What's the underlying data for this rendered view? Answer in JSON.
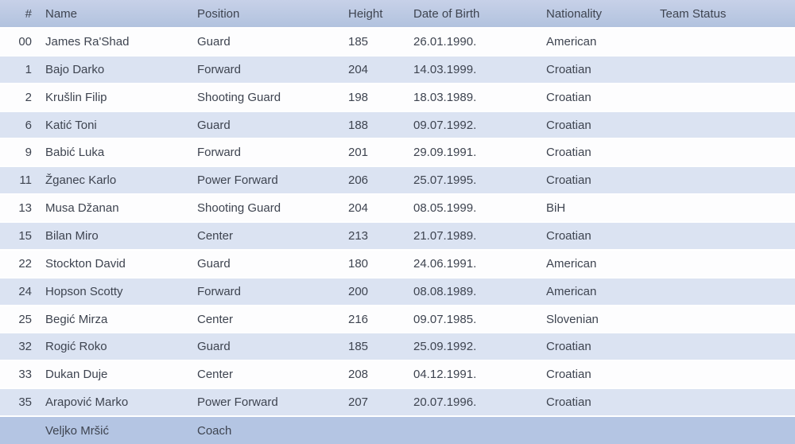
{
  "table": {
    "columns": [
      {
        "key": "num",
        "label": "#"
      },
      {
        "key": "name",
        "label": "Name"
      },
      {
        "key": "position",
        "label": "Position"
      },
      {
        "key": "height",
        "label": "Height"
      },
      {
        "key": "dob",
        "label": "Date of Birth"
      },
      {
        "key": "nationality",
        "label": "Nationality"
      },
      {
        "key": "team_status",
        "label": "Team Status"
      }
    ],
    "rows": [
      {
        "num": "00",
        "name": "James Ra'Shad",
        "position": "Guard",
        "height": "185",
        "dob": "26.01.1990.",
        "nationality": "American",
        "team_status": ""
      },
      {
        "num": "1",
        "name": "Bajo Darko",
        "position": "Forward",
        "height": "204",
        "dob": "14.03.1999.",
        "nationality": "Croatian",
        "team_status": ""
      },
      {
        "num": "2",
        "name": "Krušlin Filip",
        "position": "Shooting Guard",
        "height": "198",
        "dob": "18.03.1989.",
        "nationality": "Croatian",
        "team_status": ""
      },
      {
        "num": "6",
        "name": "Katić Toni",
        "position": "Guard",
        "height": "188",
        "dob": "09.07.1992.",
        "nationality": "Croatian",
        "team_status": ""
      },
      {
        "num": "9",
        "name": "Babić Luka",
        "position": "Forward",
        "height": "201",
        "dob": "29.09.1991.",
        "nationality": "Croatian",
        "team_status": ""
      },
      {
        "num": "11",
        "name": "Žganec Karlo",
        "position": "Power Forward",
        "height": "206",
        "dob": "25.07.1995.",
        "nationality": "Croatian",
        "team_status": ""
      },
      {
        "num": "13",
        "name": "Musa Džanan",
        "position": "Shooting Guard",
        "height": "204",
        "dob": "08.05.1999.",
        "nationality": "BiH",
        "team_status": ""
      },
      {
        "num": "15",
        "name": "Bilan Miro",
        "position": "Center",
        "height": "213",
        "dob": "21.07.1989.",
        "nationality": "Croatian",
        "team_status": ""
      },
      {
        "num": "22",
        "name": "Stockton David",
        "position": "Guard",
        "height": "180",
        "dob": "24.06.1991.",
        "nationality": "American",
        "team_status": ""
      },
      {
        "num": "24",
        "name": "Hopson Scotty",
        "position": "Forward",
        "height": "200",
        "dob": "08.08.1989.",
        "nationality": "American",
        "team_status": ""
      },
      {
        "num": "25",
        "name": "Begić Mirza",
        "position": "Center",
        "height": "216",
        "dob": "09.07.1985.",
        "nationality": "Slovenian",
        "team_status": ""
      },
      {
        "num": "32",
        "name": "Rogić Roko",
        "position": "Guard",
        "height": "185",
        "dob": "25.09.1992.",
        "nationality": "Croatian",
        "team_status": ""
      },
      {
        "num": "33",
        "name": "Dukan Duje",
        "position": "Center",
        "height": "208",
        "dob": "04.12.1991.",
        "nationality": "Croatian",
        "team_status": ""
      },
      {
        "num": "35",
        "name": "Arapović Marko",
        "position": "Power Forward",
        "height": "207",
        "dob": "20.07.1996.",
        "nationality": "Croatian",
        "team_status": ""
      }
    ],
    "coach_row": {
      "num": "",
      "name": "Veljko Mršić",
      "position": "Coach",
      "height": "",
      "dob": "",
      "nationality": "",
      "team_status": ""
    }
  },
  "colors": {
    "header_bg_top": "#c7d1e8",
    "header_bg_bottom": "#b1c2de",
    "row_white": "#fdfdfe",
    "row_blue": "#dbe3f2",
    "coach_row_bg": "#b4c5e3",
    "text": "#3e4450",
    "row_separator": "#ffffff"
  }
}
